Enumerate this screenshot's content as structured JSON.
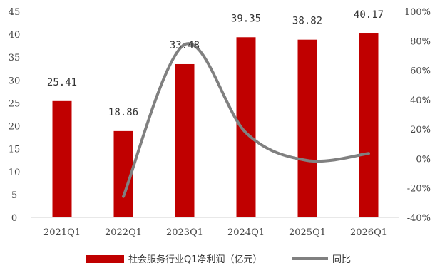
{
  "chart_data": {
    "type": "bar",
    "categories": [
      "2021Q1",
      "2022Q1",
      "2023Q1",
      "2024Q1",
      "2025Q1",
      "2026Q1"
    ],
    "series": [
      {
        "name": "社会服务行业Q1净利润（亿元）",
        "type": "bar",
        "axis": "left",
        "color": "#c00000",
        "values": [
          25.41,
          18.86,
          33.48,
          39.35,
          38.82,
          40.17
        ]
      },
      {
        "name": "同比",
        "type": "line",
        "axis": "right",
        "color": "#808080",
        "smooth": true,
        "values": [
          null,
          -25.8,
          77.5,
          17.5,
          -1.3,
          3.5
        ]
      }
    ],
    "data_labels": [
      "25.41",
      "18.86",
      "33.48",
      "39.35",
      "38.82",
      "40.17"
    ],
    "ylim": [
      0,
      45
    ],
    "yticks": [
      "0",
      "5",
      "10",
      "15",
      "20",
      "25",
      "30",
      "35",
      "40",
      "45"
    ],
    "y2lim": [
      -40,
      100
    ],
    "y2ticks": [
      "-40%",
      "-20%",
      "0%",
      "20%",
      "40%",
      "60%",
      "80%",
      "100%"
    ],
    "legend": "bottom",
    "grid": false,
    "title": "",
    "xlabel": "",
    "ylabel": ""
  }
}
